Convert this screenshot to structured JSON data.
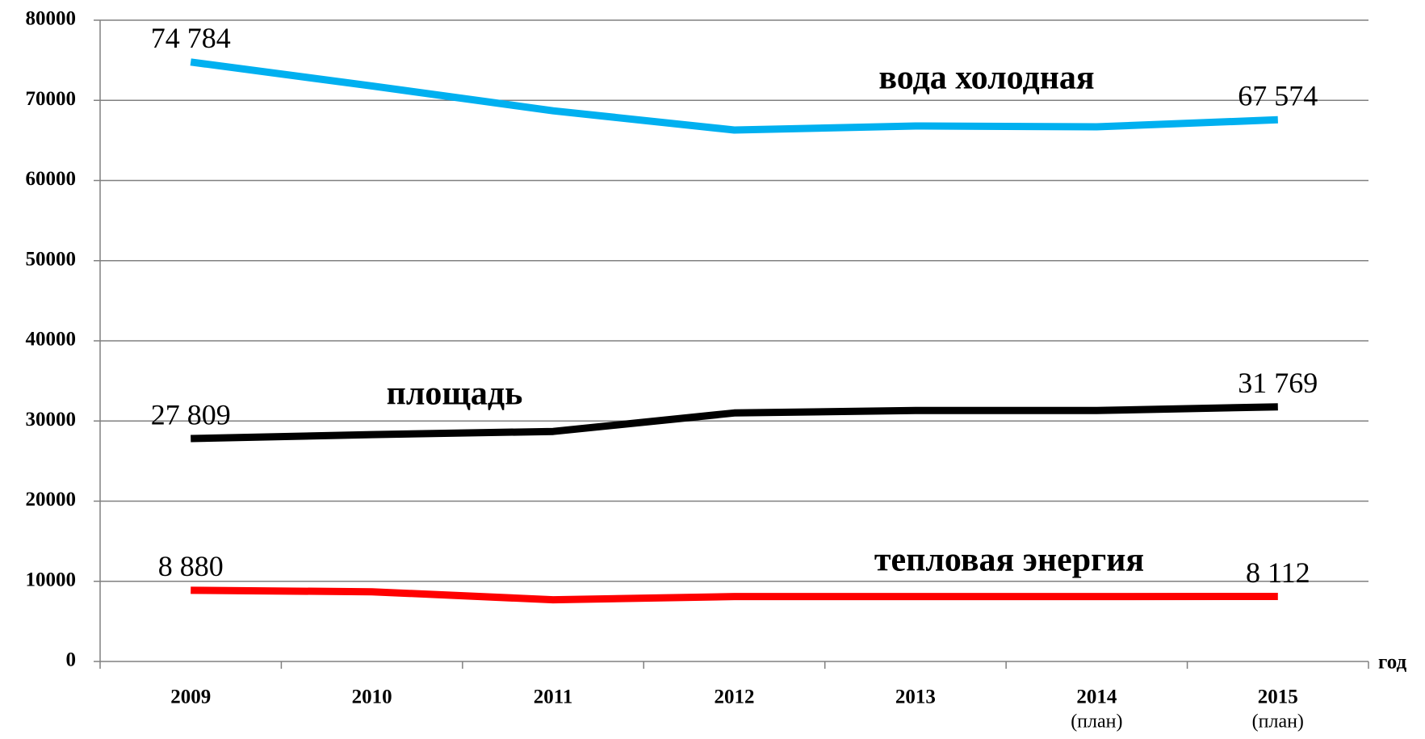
{
  "chart_data": {
    "type": "line",
    "categories": [
      "2009",
      "2010",
      "2011",
      "2012",
      "2013",
      "2014",
      "2015"
    ],
    "category_notes": [
      null,
      null,
      null,
      null,
      null,
      "(план)",
      "(план)"
    ],
    "x_label": "год",
    "ylim": [
      0,
      80000
    ],
    "yticks": [
      0,
      10000,
      20000,
      30000,
      40000,
      50000,
      60000,
      70000,
      80000
    ],
    "grid": true,
    "series": [
      {
        "name": "вода холодная",
        "color": "#00b0f0",
        "values": [
          74784,
          71800,
          68700,
          66300,
          66800,
          66700,
          67574
        ],
        "value_labels": [
          "74 784",
          null,
          null,
          null,
          null,
          null,
          "67 574"
        ]
      },
      {
        "name": "площадь",
        "color": "#000000",
        "values": [
          27809,
          28300,
          28700,
          31000,
          31300,
          31300,
          31769
        ],
        "value_labels": [
          "27 809",
          null,
          null,
          null,
          null,
          null,
          "31 769"
        ]
      },
      {
        "name": "тепловая энергия",
        "color": "#ff0000",
        "values": [
          8880,
          8700,
          7700,
          8100,
          8100,
          8100,
          8112
        ],
        "value_labels": [
          "8 880",
          null,
          null,
          null,
          null,
          null,
          "8 112"
        ]
      }
    ]
  }
}
